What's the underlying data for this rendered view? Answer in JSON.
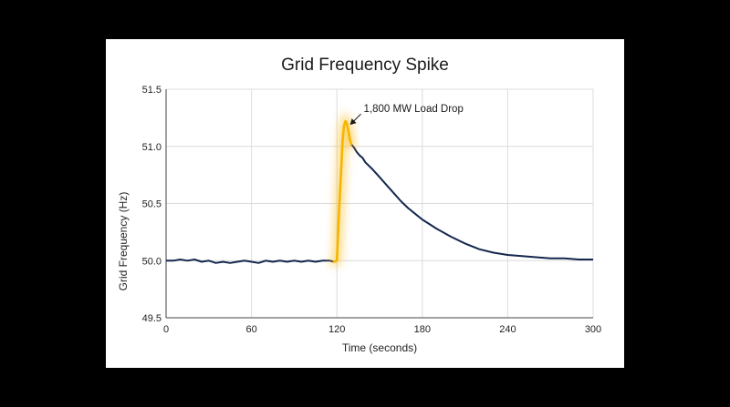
{
  "colors": {
    "background": "#000000",
    "panel": "#ffffff",
    "series": "#14274e",
    "highlight": "#f7b500",
    "grid": "#dcdcdc",
    "axis": "#444444"
  },
  "chart_data": {
    "type": "line",
    "title": "Grid Frequency Spike",
    "xlabel": "Time (seconds)",
    "ylabel": "Grid Frequency (Hz)",
    "xlim": [
      0,
      300
    ],
    "ylim": [
      49.5,
      51.5
    ],
    "xticks": [
      0,
      60,
      120,
      180,
      240,
      300
    ],
    "yticks": [
      49.5,
      50.0,
      50.5,
      51.0,
      51.5
    ],
    "xtick_labels": [
      "0",
      "60",
      "120",
      "180",
      "240",
      "300"
    ],
    "ytick_labels": [
      "49.5",
      "50.0",
      "50.5",
      "51.0",
      "51.5"
    ],
    "grid": true,
    "series": [
      {
        "x": [
          0,
          5,
          10,
          15,
          20,
          25,
          30,
          35,
          40,
          45,
          50,
          55,
          60,
          65,
          70,
          75,
          80,
          85,
          90,
          95,
          100,
          105,
          110,
          115,
          118,
          120,
          121,
          122,
          123,
          124,
          125,
          126,
          127,
          128,
          129,
          130,
          132,
          134,
          136,
          138,
          140,
          145,
          150,
          155,
          160,
          165,
          170,
          175,
          180,
          190,
          200,
          210,
          220,
          230,
          240,
          250,
          260,
          270,
          280,
          290,
          300
        ],
        "y": [
          50.0,
          50.0,
          50.01,
          50.0,
          50.01,
          49.99,
          50.0,
          49.98,
          49.99,
          49.98,
          49.99,
          50.0,
          49.99,
          49.98,
          50.0,
          49.99,
          50.0,
          49.99,
          50.0,
          49.99,
          50.0,
          49.99,
          50.0,
          50.0,
          49.99,
          50.0,
          50.3,
          50.55,
          50.8,
          51.05,
          51.18,
          51.22,
          51.2,
          51.14,
          51.07,
          51.02,
          50.99,
          50.95,
          50.92,
          50.9,
          50.86,
          50.8,
          50.73,
          50.66,
          50.59,
          50.52,
          50.46,
          50.41,
          50.36,
          50.28,
          50.21,
          50.15,
          50.1,
          50.07,
          50.05,
          50.04,
          50.03,
          50.02,
          50.02,
          50.01,
          50.01
        ]
      }
    ],
    "highlight_range": [
      118,
      130
    ],
    "annotation": {
      "text": "1,800 MW Load Drop",
      "x": 126,
      "y": 51.22
    }
  }
}
